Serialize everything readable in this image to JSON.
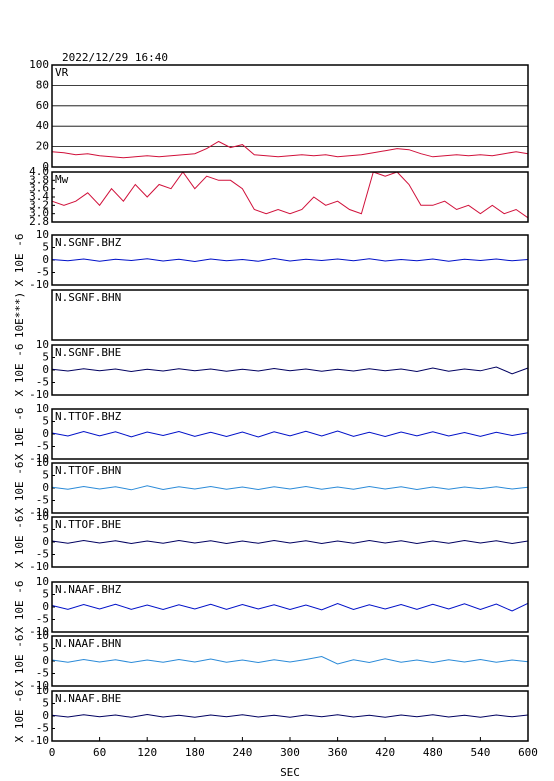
{
  "chart_data": [
    {
      "type": "line",
      "title": "2022/12/29 16:40",
      "label": "VR",
      "color": "#d0103a",
      "grid": true,
      "xlim": [
        0,
        600
      ],
      "ylim": [
        0,
        100
      ],
      "yticks": [
        0,
        20,
        40,
        60,
        80,
        100
      ],
      "x": [
        0,
        15,
        30,
        45,
        60,
        75,
        90,
        105,
        120,
        135,
        150,
        165,
        180,
        195,
        210,
        225,
        240,
        255,
        270,
        285,
        300,
        315,
        330,
        345,
        360,
        375,
        390,
        405,
        420,
        435,
        450,
        465,
        480,
        495,
        510,
        525,
        540,
        555,
        570,
        585,
        600
      ],
      "values": [
        15,
        14,
        12,
        13,
        11,
        10,
        9,
        10,
        11,
        10,
        11,
        12,
        13,
        18,
        25,
        19,
        22,
        12,
        11,
        10,
        11,
        12,
        11,
        12,
        10,
        11,
        12,
        14,
        16,
        18,
        17,
        13,
        10,
        11,
        12,
        11,
        12,
        11,
        13,
        15,
        13
      ]
    },
    {
      "type": "line",
      "label": "Mw",
      "color": "#d0103a",
      "xlim": [
        0,
        600
      ],
      "ylim": [
        2.8,
        4.0
      ],
      "yticks": [
        {
          "value": 4,
          "label": "4.0"
        },
        3.8,
        3.6,
        3.4,
        3.2,
        {
          "value": 3,
          "label": "3.0"
        },
        2.8
      ],
      "x": [
        0,
        15,
        30,
        45,
        60,
        75,
        90,
        105,
        120,
        135,
        150,
        165,
        180,
        195,
        210,
        225,
        240,
        255,
        270,
        285,
        300,
        315,
        330,
        345,
        360,
        375,
        390,
        405,
        420,
        435,
        450,
        465,
        480,
        495,
        510,
        525,
        540,
        555,
        570,
        585,
        600
      ],
      "values": [
        3.3,
        3.2,
        3.3,
        3.5,
        3.2,
        3.6,
        3.3,
        3.7,
        3.4,
        3.7,
        3.6,
        4.0,
        3.6,
        3.9,
        3.8,
        3.8,
        3.6,
        3.1,
        3.0,
        3.1,
        3.0,
        3.1,
        3.4,
        3.2,
        3.3,
        3.1,
        3.0,
        4.0,
        3.9,
        4.0,
        3.7,
        3.2,
        3.2,
        3.3,
        3.1,
        3.2,
        3.0,
        3.2,
        3.0,
        3.1,
        2.9
      ]
    },
    {
      "type": "line",
      "label": "N.SGNF.BHZ",
      "ylabel": "X 10E -6",
      "color": "#0010c8",
      "xlim": [
        0,
        600
      ],
      "ylim": [
        -10,
        10
      ],
      "yticks": [
        10,
        5,
        0,
        -5,
        -10
      ],
      "x": [
        0,
        20,
        40,
        60,
        80,
        100,
        120,
        140,
        160,
        180,
        200,
        220,
        240,
        260,
        280,
        300,
        320,
        340,
        360,
        380,
        400,
        420,
        440,
        460,
        480,
        500,
        520,
        540,
        560,
        580,
        600
      ],
      "values": [
        0.2,
        -0.3,
        0.4,
        -0.5,
        0.3,
        -0.2,
        0.5,
        -0.4,
        0.3,
        -0.6,
        0.4,
        -0.3,
        0.2,
        -0.5,
        0.6,
        -0.4,
        0.3,
        -0.2,
        0.4,
        -0.3,
        0.5,
        -0.4,
        0.2,
        -0.3,
        0.4,
        -0.5,
        0.3,
        -0.2,
        0.4,
        -0.3,
        0.2
      ]
    },
    {
      "type": "line",
      "label": "N.SGNF.BHN",
      "ylabel": "10E***)",
      "color": "#2a8ad8",
      "xlim": [
        0,
        600
      ]
    },
    {
      "type": "line",
      "label": "N.SGNF.BHE",
      "ylabel": "X 10E -6",
      "color": "#000060",
      "xlim": [
        0,
        600
      ],
      "ylim": [
        -10,
        10
      ],
      "yticks": [
        10,
        5,
        0,
        -5,
        -10
      ],
      "x": [
        0,
        20,
        40,
        60,
        80,
        100,
        120,
        140,
        160,
        180,
        200,
        220,
        240,
        260,
        280,
        300,
        320,
        340,
        360,
        380,
        400,
        420,
        440,
        460,
        480,
        500,
        520,
        540,
        560,
        580,
        600
      ],
      "values": [
        0.3,
        -0.4,
        0.5,
        -0.3,
        0.4,
        -0.6,
        0.3,
        -0.4,
        0.5,
        -0.3,
        0.4,
        -0.5,
        0.3,
        -0.4,
        0.6,
        -0.3,
        0.4,
        -0.5,
        0.3,
        -0.4,
        0.5,
        -0.3,
        0.4,
        -0.6,
        0.8,
        -0.5,
        0.4,
        -0.3,
        1.2,
        -1.5,
        0.8
      ]
    },
    {
      "type": "line",
      "label": "N.TTOF.BHZ",
      "ylabel": "X 10E -6",
      "color": "#0010c8",
      "xlim": [
        0,
        600
      ],
      "ylim": [
        -10,
        10
      ],
      "yticks": [
        10,
        5,
        0,
        -5,
        -10
      ],
      "x": [
        0,
        20,
        40,
        60,
        80,
        100,
        120,
        140,
        160,
        180,
        200,
        220,
        240,
        260,
        280,
        300,
        320,
        340,
        360,
        380,
        400,
        420,
        440,
        460,
        480,
        500,
        520,
        540,
        560,
        580,
        600
      ],
      "values": [
        0.4,
        -0.8,
        1.0,
        -0.7,
        0.9,
        -1.1,
        0.8,
        -0.6,
        1.0,
        -0.9,
        0.7,
        -1.0,
        0.8,
        -1.2,
        0.9,
        -0.7,
        1.1,
        -0.8,
        1.2,
        -0.9,
        0.7,
        -1.0,
        0.8,
        -0.7,
        0.9,
        -0.8,
        0.6,
        -0.9,
        0.7,
        -0.6,
        0.5
      ]
    },
    {
      "type": "line",
      "label": "N.TTOF.BHN",
      "ylabel": "X 10E -6",
      "color": "#2a8ad8",
      "xlim": [
        0,
        600
      ],
      "ylim": [
        -10,
        10
      ],
      "yticks": [
        10,
        5,
        0,
        -5,
        -10
      ],
      "x": [
        0,
        20,
        40,
        60,
        80,
        100,
        120,
        140,
        160,
        180,
        200,
        220,
        240,
        260,
        280,
        300,
        320,
        340,
        360,
        380,
        400,
        420,
        440,
        460,
        480,
        500,
        520,
        540,
        560,
        580,
        600
      ],
      "values": [
        0.3,
        -0.5,
        0.6,
        -0.4,
        0.5,
        -0.7,
        0.9,
        -0.6,
        0.5,
        -0.4,
        0.6,
        -0.5,
        0.4,
        -0.6,
        0.5,
        -0.4,
        0.6,
        -0.5,
        0.4,
        -0.5,
        0.6,
        -0.4,
        0.5,
        -0.6,
        0.4,
        -0.5,
        0.4,
        -0.3,
        0.5,
        -0.4,
        0.3
      ]
    },
    {
      "type": "line",
      "label": "N.TTOF.BHE",
      "ylabel": "X 10E -6",
      "color": "#000060",
      "xlim": [
        0,
        600
      ],
      "ylim": [
        -10,
        10
      ],
      "yticks": [
        10,
        5,
        0,
        -5,
        -10
      ],
      "x": [
        0,
        20,
        40,
        60,
        80,
        100,
        120,
        140,
        160,
        180,
        200,
        220,
        240,
        260,
        280,
        300,
        320,
        340,
        360,
        380,
        400,
        420,
        440,
        460,
        480,
        500,
        520,
        540,
        560,
        580,
        600
      ],
      "values": [
        0.4,
        -0.5,
        0.6,
        -0.4,
        0.5,
        -0.6,
        0.4,
        -0.5,
        0.6,
        -0.4,
        0.5,
        -0.6,
        0.4,
        -0.5,
        0.6,
        -0.4,
        0.5,
        -0.6,
        0.4,
        -0.5,
        0.6,
        -0.4,
        0.5,
        -0.6,
        0.4,
        -0.5,
        0.6,
        -0.4,
        0.5,
        -0.6,
        0.4
      ]
    },
    {
      "type": "line",
      "label": "N.NAAF.BHZ",
      "ylabel": "X 10E -6",
      "color": "#0010c8",
      "xlim": [
        0,
        600
      ],
      "ylim": [
        -10,
        10
      ],
      "yticks": [
        10,
        5,
        0,
        -5,
        -10
      ],
      "x": [
        0,
        20,
        40,
        60,
        80,
        100,
        120,
        140,
        160,
        180,
        200,
        220,
        240,
        260,
        280,
        300,
        320,
        340,
        360,
        380,
        400,
        420,
        440,
        460,
        480,
        500,
        520,
        540,
        560,
        580,
        600
      ],
      "values": [
        0.6,
        -0.9,
        1.0,
        -0.8,
        1.1,
        -0.9,
        0.8,
        -1.0,
        0.9,
        -0.8,
        1.1,
        -0.9,
        1.0,
        -0.8,
        0.9,
        -1.0,
        0.8,
        -1.1,
        1.4,
        -1.0,
        0.9,
        -0.8,
        1.0,
        -0.9,
        1.1,
        -0.8,
        1.3,
        -1.0,
        1.2,
        -1.6,
        1.5
      ]
    },
    {
      "type": "line",
      "label": "N.NAAF.BHN",
      "ylabel": "X 10E -6",
      "color": "#2a8ad8",
      "xlim": [
        0,
        600
      ],
      "ylim": [
        -10,
        10
      ],
      "yticks": [
        10,
        5,
        0,
        -5,
        -10
      ],
      "x": [
        0,
        20,
        40,
        60,
        80,
        100,
        120,
        140,
        160,
        180,
        200,
        220,
        240,
        260,
        280,
        300,
        320,
        340,
        360,
        380,
        400,
        420,
        440,
        460,
        480,
        500,
        520,
        540,
        560,
        580,
        600
      ],
      "values": [
        0.4,
        -0.5,
        0.6,
        -0.4,
        0.5,
        -0.6,
        0.4,
        -0.5,
        0.6,
        -0.4,
        0.8,
        -0.5,
        0.4,
        -0.6,
        0.5,
        -0.4,
        0.6,
        1.8,
        -1.2,
        0.5,
        -0.6,
        0.9,
        -0.5,
        0.4,
        -0.6,
        0.5,
        -0.4,
        0.6,
        -0.5,
        0.4,
        -0.3
      ]
    },
    {
      "type": "line",
      "label": "N.NAAF.BHE",
      "ylabel": "X 10E -6",
      "color": "#000060",
      "xlim": [
        0,
        600
      ],
      "ylim": [
        -10,
        10
      ],
      "yticks": [
        10,
        5,
        0,
        -5,
        -10
      ],
      "x": [
        0,
        20,
        40,
        60,
        80,
        100,
        120,
        140,
        160,
        180,
        200,
        220,
        240,
        260,
        280,
        300,
        320,
        340,
        360,
        380,
        400,
        420,
        440,
        460,
        480,
        500,
        520,
        540,
        560,
        580,
        600
      ],
      "values": [
        0.3,
        -0.4,
        0.5,
        -0.3,
        0.4,
        -0.5,
        0.6,
        -0.4,
        0.3,
        -0.5,
        0.4,
        -0.3,
        0.5,
        -0.4,
        0.3,
        -0.5,
        0.4,
        -0.3,
        0.5,
        -0.4,
        0.3,
        -0.5,
        0.4,
        -0.3,
        0.5,
        -0.4,
        0.3,
        -0.5,
        0.4,
        -0.3,
        0.4
      ],
      "xticks": [
        0,
        60,
        120,
        180,
        240,
        300,
        360,
        420,
        480,
        540,
        600
      ],
      "xlabel": "SEC"
    }
  ]
}
